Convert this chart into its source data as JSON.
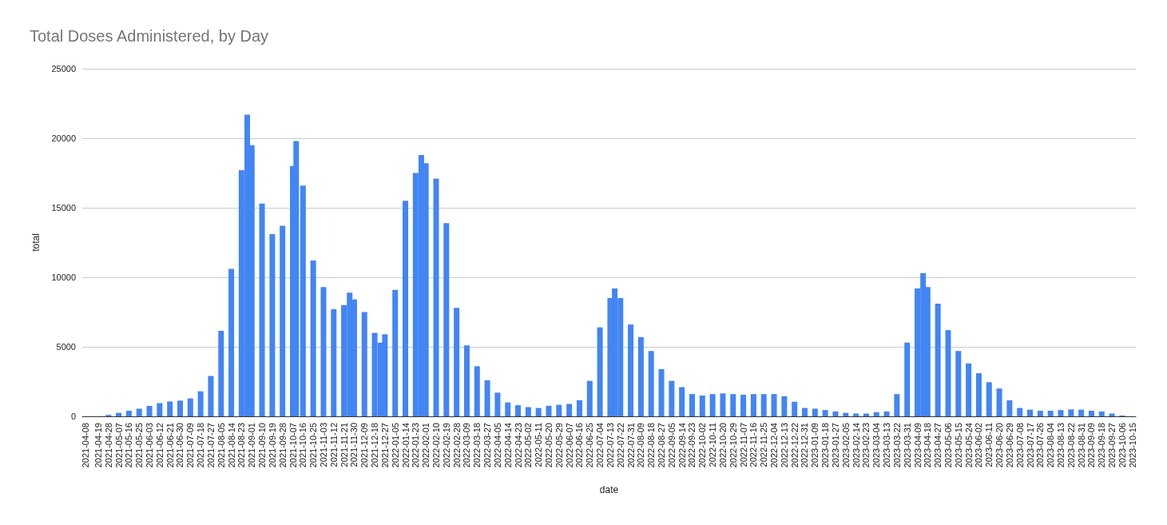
{
  "chart_data": {
    "type": "bar",
    "title": "Total Doses Administered, by Day",
    "xlabel": "date",
    "ylabel": "total",
    "x": [
      "2021-04-08",
      "2021-04-19",
      "2021-04-28",
      "2021-05-07",
      "2021-05-16",
      "2021-05-25",
      "2021-06-03",
      "2021-06-12",
      "2021-06-21",
      "2021-06-30",
      "2021-07-09",
      "2021-07-18",
      "2021-07-27",
      "2021-08-05",
      "2021-08-14",
      "2021-08-23",
      "2021-08-28",
      "2021-09-01",
      "2021-09-10",
      "2021-09-19",
      "2021-09-28",
      "2021-10-07",
      "2021-10-10",
      "2021-10-16",
      "2021-10-25",
      "2021-11-03",
      "2021-11-12",
      "2021-11-21",
      "2021-11-26",
      "2021-11-30",
      "2021-12-09",
      "2021-12-18",
      "2021-12-23",
      "2021-12-27",
      "2022-01-05",
      "2022-01-14",
      "2022-01-23",
      "2022-01-28",
      "2022-02-01",
      "2022-02-10",
      "2022-02-19",
      "2022-02-28",
      "2022-03-09",
      "2022-03-18",
      "2022-03-27",
      "2022-04-05",
      "2022-04-14",
      "2022-04-23",
      "2022-05-02",
      "2022-05-11",
      "2022-05-20",
      "2022-05-29",
      "2022-06-07",
      "2022-06-16",
      "2022-06-25",
      "2022-07-04",
      "2022-07-13",
      "2022-07-17",
      "2022-07-22",
      "2022-07-31",
      "2022-08-09",
      "2022-08-18",
      "2022-08-27",
      "2022-09-05",
      "2022-09-14",
      "2022-09-23",
      "2022-10-02",
      "2022-10-11",
      "2022-10-20",
      "2022-10-29",
      "2022-11-07",
      "2022-11-16",
      "2022-11-25",
      "2022-12-04",
      "2022-12-13",
      "2022-12-22",
      "2022-12-31",
      "2023-01-09",
      "2023-01-18",
      "2023-01-27",
      "2023-02-05",
      "2023-02-14",
      "2023-02-23",
      "2023-03-04",
      "2023-03-13",
      "2023-03-22",
      "2023-03-31",
      "2023-04-09",
      "2023-04-14",
      "2023-04-18",
      "2023-04-27",
      "2023-05-06",
      "2023-05-15",
      "2023-05-24",
      "2023-06-02",
      "2023-06-11",
      "2023-06-20",
      "2023-06-29",
      "2023-07-08",
      "2023-07-17",
      "2023-07-26",
      "2023-08-04",
      "2023-08-13",
      "2023-08-22",
      "2023-08-31",
      "2023-09-09",
      "2023-09-18",
      "2023-09-27",
      "2023-10-06"
    ],
    "values": [
      0,
      0,
      100,
      250,
      400,
      550,
      750,
      950,
      1070,
      1130,
      1290,
      1800,
      2900,
      6150,
      10600,
      17700,
      21700,
      19500,
      15300,
      13100,
      13700,
      18000,
      19800,
      16600,
      11200,
      9300,
      7700,
      8000,
      8900,
      8400,
      7500,
      6000,
      5300,
      5900,
      9100,
      15500,
      17500,
      18800,
      18200,
      17100,
      13900,
      7800,
      5100,
      3600,
      2600,
      1700,
      1000,
      800,
      660,
      600,
      760,
      830,
      890,
      1160,
      2550,
      6400,
      8500,
      9200,
      8500,
      6600,
      5700,
      4700,
      3400,
      2550,
      2100,
      1600,
      1500,
      1600,
      1650,
      1600,
      1550,
      1600,
      1600,
      1600,
      1450,
      1050,
      600,
      550,
      450,
      350,
      250,
      200,
      200,
      300,
      350,
      1600,
      5300,
      9200,
      10300,
      9300,
      8100,
      6200,
      4700,
      3800,
      3100,
      2450,
      2000,
      1150,
      600,
      480,
      400,
      400,
      450,
      500,
      480,
      400,
      350,
      200,
      60
    ],
    "color": "#4285f4",
    "xlim": [
      "2021-04-05",
      "2023-10-18"
    ],
    "xticks": [
      "2021-04-08",
      "2021-04-19",
      "2021-04-28",
      "2021-05-07",
      "2021-05-16",
      "2021-05-25",
      "2021-06-03",
      "2021-06-12",
      "2021-06-21",
      "2021-06-30",
      "2021-07-09",
      "2021-07-18",
      "2021-07-27",
      "2021-08-05",
      "2021-08-14",
      "2021-08-23",
      "2021-09-01",
      "2021-09-10",
      "2021-09-19",
      "2021-09-28",
      "2021-10-07",
      "2021-10-16",
      "2021-10-25",
      "2021-11-03",
      "2021-11-12",
      "2021-11-21",
      "2021-11-30",
      "2021-12-09",
      "2021-12-18",
      "2021-12-27",
      "2022-01-05",
      "2022-01-14",
      "2022-01-23",
      "2022-02-01",
      "2022-02-10",
      "2022-02-19",
      "2022-02-28",
      "2022-03-09",
      "2022-03-18",
      "2022-03-27",
      "2022-04-05",
      "2022-04-14",
      "2022-04-23",
      "2022-05-02",
      "2022-05-11",
      "2022-05-20",
      "2022-05-29",
      "2022-06-07",
      "2022-06-16",
      "2022-06-25",
      "2022-07-04",
      "2022-07-13",
      "2022-07-22",
      "2022-07-31",
      "2022-08-09",
      "2022-08-18",
      "2022-08-27",
      "2022-09-05",
      "2022-09-14",
      "2022-09-23",
      "2022-10-02",
      "2022-10-11",
      "2022-10-20",
      "2022-10-29",
      "2022-11-07",
      "2022-11-16",
      "2022-11-25",
      "2022-12-04",
      "2022-12-13",
      "2022-12-22",
      "2022-12-31",
      "2023-01-09",
      "2023-01-18",
      "2023-01-27",
      "2023-02-05",
      "2023-02-14",
      "2023-02-23",
      "2023-03-04",
      "2023-03-13",
      "2023-03-22",
      "2023-03-31",
      "2023-04-09",
      "2023-04-18",
      "2023-04-27",
      "2023-05-06",
      "2023-05-15",
      "2023-05-24",
      "2023-06-02",
      "2023-06-11",
      "2023-06-20",
      "2023-06-29",
      "2023-07-08",
      "2023-07-17",
      "2023-07-26",
      "2023-08-04",
      "2023-08-13",
      "2023-08-22",
      "2023-08-31",
      "2023-09-09",
      "2023-09-18",
      "2023-09-27",
      "2023-10-06",
      "2023-10-15"
    ],
    "ylim": [
      0,
      25000
    ],
    "yticks": [
      0,
      5000,
      10000,
      15000,
      20000,
      25000
    ],
    "grid": "y"
  }
}
